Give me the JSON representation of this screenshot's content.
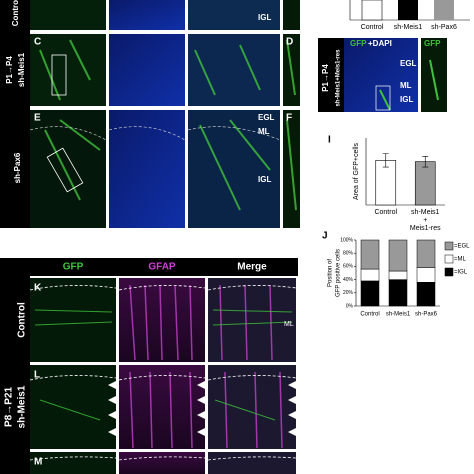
{
  "top_panels": {
    "row_labels": [
      "Control",
      "sh-Meis1",
      "sh-Pax6"
    ],
    "stage_label": "P1→P4",
    "letters": [
      "C",
      "D",
      "E",
      "F"
    ],
    "layers_a": [
      "IGL"
    ],
    "layers_e": [
      "EGL",
      "ML",
      "IGL"
    ]
  },
  "top_chart": {
    "categories": [
      "Control",
      "sh-Meis1",
      "sh-Pax6"
    ]
  },
  "panel_h": {
    "letter": "H",
    "stain_1": "GFP",
    "stain_2": "+DAPI",
    "stain_3": "GFP",
    "layers": [
      "EGL",
      "ML",
      "IGL"
    ],
    "stage_label": "P1→P4",
    "condition": "sh-Meis1+Meis1-res"
  },
  "charts": [
    {
      "type": "bar",
      "letter": "I",
      "ylabel": "Area of GFP+cells",
      "categories": [
        "Control",
        [
          "sh-Meis1",
          "+",
          "Meis1-res"
        ]
      ],
      "values": [
        1.0,
        0.97
      ],
      "errors": [
        0.15,
        0.12
      ],
      "colors": [
        "#ffffff",
        "#999999"
      ],
      "ylim": [
        0,
        1.5
      ]
    },
    {
      "type": "stacked_bar",
      "letter": "J",
      "ylabel": [
        "Position of",
        "GFP positive cells"
      ],
      "categories": [
        "Control",
        "sh-Meis1",
        "sh-Pax6"
      ],
      "series": [
        {
          "name": "=IGL",
          "color": "#000000",
          "values": [
            38,
            40,
            36
          ]
        },
        {
          "name": "=ML",
          "color": "#ffffff",
          "values": [
            18,
            13,
            22
          ]
        },
        {
          "name": "=EGL",
          "color": "#999999",
          "values": [
            44,
            47,
            42
          ]
        }
      ],
      "ylim": [
        0,
        100
      ],
      "yticks": [
        {
          "value": 0,
          "label": "0%"
        },
        {
          "value": 20,
          "label": "20%"
        },
        {
          "value": 40,
          "label": "40%"
        },
        {
          "value": 60,
          "label": "60%"
        },
        {
          "value": 80,
          "label": "80%"
        },
        {
          "value": 100,
          "label": "100%"
        }
      ]
    }
  ],
  "bottom_panels": {
    "columns": [
      "GFP",
      "GFAP",
      "Merge"
    ],
    "letters": [
      "K",
      "L",
      "M"
    ],
    "row_labels": [
      "Control",
      "sh-Meis1"
    ],
    "stage_label": "P8→P21",
    "layer": "ML"
  }
}
